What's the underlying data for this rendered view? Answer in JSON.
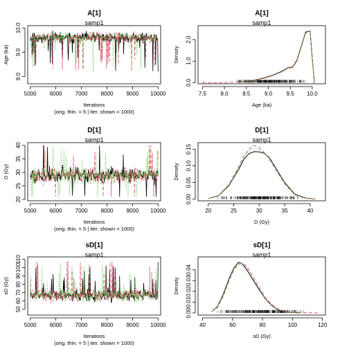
{
  "chart_data": [
    {
      "type": "line",
      "kind": "trace",
      "title": "A[1]",
      "subtitle": "samp1",
      "xlabel": "Iterations",
      "note": "(orig. thin. = 5 | iter. shown = 1000)",
      "ylabel": "Age (ka)",
      "xlim": [
        4900,
        10100
      ],
      "ylim": [
        7.7,
        10.1
      ],
      "xticks": [
        5000,
        6000,
        7000,
        8000,
        9000,
        10000
      ],
      "yticks": [
        8.0,
        9.0,
        10.0
      ],
      "ytick_labels": [
        "8.0",
        "9.0",
        "10.0"
      ],
      "mean": 9.6,
      "spread": 0.2,
      "lo": 8.2,
      "hi": 9.95,
      "skew": "low",
      "series": [
        {
          "color": "#000000",
          "dash": "none",
          "seed": 11
        },
        {
          "color": "#DF536B",
          "dash": "5,3",
          "seed": 23
        },
        {
          "color": "#61D04F",
          "dash": "1.5,2",
          "seed": 37
        }
      ]
    },
    {
      "type": "line",
      "kind": "density",
      "title": "A[1]",
      "subtitle": "samp1",
      "xlabel": "Age (ka)",
      "ylabel": "Density",
      "xlim": [
        7.4,
        10.3
      ],
      "ylim": [
        -0.05,
        2.65
      ],
      "xticks": [
        7.5,
        8.0,
        8.5,
        9.0,
        9.5,
        10.0
      ],
      "xtick_labels": [
        "7.5",
        "8.0",
        "8.5",
        "9.0",
        "9.5",
        "10.0"
      ],
      "yticks": [
        0.0,
        1.0,
        2.0
      ],
      "ytick_labels": [
        "0.0",
        "1.0",
        "2.0"
      ],
      "rug": [
        8.2,
        9.95
      ],
      "series": [
        {
          "color": "#000000",
          "dash": "none",
          "x": [
            8.3,
            8.6,
            8.9,
            9.1,
            9.3,
            9.45,
            9.55,
            9.65,
            9.75,
            9.85,
            9.95,
            10.0,
            10.05
          ],
          "y": [
            0.02,
            0.08,
            0.22,
            0.35,
            0.52,
            0.7,
            0.72,
            1.05,
            1.7,
            2.35,
            2.4,
            1.1,
            0.0
          ]
        },
        {
          "color": "#DF536B",
          "dash": "5,3",
          "x": [
            7.5,
            8.0,
            8.5,
            8.9,
            9.1,
            9.3,
            9.45,
            9.55,
            9.65,
            9.75,
            9.85,
            9.95,
            10.0,
            10.05
          ],
          "y": [
            0.0,
            0.0,
            0.06,
            0.2,
            0.33,
            0.5,
            0.68,
            0.7,
            1.0,
            1.65,
            2.3,
            2.42,
            1.15,
            0.0
          ]
        },
        {
          "color": "#61D04F",
          "dash": "1.5,2",
          "x": [
            8.3,
            8.6,
            8.9,
            9.1,
            9.3,
            9.45,
            9.55,
            9.65,
            9.75,
            9.85,
            9.95,
            10.0,
            10.05
          ],
          "y": [
            0.03,
            0.09,
            0.24,
            0.36,
            0.55,
            0.72,
            0.74,
            1.08,
            1.72,
            2.3,
            2.38,
            1.05,
            0.0
          ]
        }
      ]
    },
    {
      "type": "line",
      "kind": "trace",
      "title": "D[1]",
      "subtitle": "samp1",
      "xlabel": "Iterations",
      "note": "(orig. thin. = 5 | iter. shown = 1000)",
      "ylabel": "D (Gy)",
      "xlim": [
        4900,
        10100
      ],
      "ylim": [
        19.5,
        41
      ],
      "xticks": [
        5000,
        6000,
        7000,
        8000,
        9000,
        10000
      ],
      "yticks": [
        20,
        25,
        30,
        35,
        40
      ],
      "ytick_labels": [
        "20",
        "25",
        "30",
        "35",
        "40"
      ],
      "mean": 29,
      "spread": 2.6,
      "lo": 21,
      "hi": 40,
      "skew": "none",
      "series": [
        {
          "color": "#000000",
          "dash": "none",
          "seed": 5
        },
        {
          "color": "#DF536B",
          "dash": "5,3",
          "seed": 17
        },
        {
          "color": "#61D04F",
          "dash": "1.5,2",
          "seed": 29
        }
      ]
    },
    {
      "type": "line",
      "kind": "density",
      "title": "D[1]",
      "subtitle": "samp1",
      "xlabel": "D (Gy)",
      "ylabel": "Density",
      "xlim": [
        18,
        43
      ],
      "ylim": [
        -0.005,
        0.17
      ],
      "xticks": [
        20,
        25,
        30,
        35,
        40
      ],
      "xtick_labels": [
        "20",
        "25",
        "30",
        "35",
        "40"
      ],
      "yticks": [
        0.0,
        0.05,
        0.1,
        0.15
      ],
      "ytick_labels": [
        "0.00",
        "0.05",
        "0.10",
        "0.15"
      ],
      "rug": [
        21.5,
        39
      ],
      "series": [
        {
          "color": "#000000",
          "dash": "none",
          "x": [
            20,
            22,
            24,
            26,
            27,
            28,
            29,
            30,
            31,
            32,
            33,
            35,
            37,
            39,
            41
          ],
          "y": [
            0.002,
            0.01,
            0.04,
            0.09,
            0.12,
            0.137,
            0.143,
            0.142,
            0.138,
            0.125,
            0.1,
            0.05,
            0.015,
            0.004,
            0.0
          ]
        },
        {
          "color": "#DF536B",
          "dash": "5,3",
          "x": [
            20,
            22,
            24,
            26,
            27,
            28,
            29,
            30,
            31,
            32,
            33,
            35,
            37,
            39,
            41
          ],
          "y": [
            0.002,
            0.011,
            0.042,
            0.1,
            0.13,
            0.15,
            0.162,
            0.155,
            0.14,
            0.12,
            0.095,
            0.045,
            0.013,
            0.003,
            0.0
          ]
        },
        {
          "color": "#61D04F",
          "dash": "1.5,2",
          "x": [
            20,
            22,
            24,
            26,
            27,
            28,
            29,
            30,
            31,
            32,
            33,
            35,
            37,
            39,
            41
          ],
          "y": [
            0.002,
            0.01,
            0.038,
            0.095,
            0.127,
            0.145,
            0.152,
            0.15,
            0.14,
            0.123,
            0.098,
            0.048,
            0.014,
            0.004,
            0.0
          ]
        }
      ]
    },
    {
      "type": "line",
      "kind": "trace",
      "title": "sD[1]",
      "subtitle": "samp1",
      "xlabel": "Iterations",
      "note": "(orig. thin. = 5 | iter. shown = 1000)",
      "ylabel": "sD (Gy)",
      "xlim": [
        4900,
        10100
      ],
      "ylim": [
        43,
        113
      ],
      "xticks": [
        5000,
        6000,
        7000,
        8000,
        9000,
        10000
      ],
      "yticks": [
        50,
        60,
        70,
        80,
        90,
        100,
        110
      ],
      "ytick_labels": [
        "50",
        "60",
        "70",
        "80",
        "90",
        "100",
        "110"
      ],
      "mean": 67,
      "spread": 7,
      "lo": 47,
      "hi": 108,
      "skew": "high",
      "series": [
        {
          "color": "#000000",
          "dash": "none",
          "seed": 7
        },
        {
          "color": "#DF536B",
          "dash": "5,3",
          "seed": 19
        },
        {
          "color": "#61D04F",
          "dash": "1.5,2",
          "seed": 31
        }
      ]
    },
    {
      "type": "line",
      "kind": "density",
      "title": "sD[1]",
      "subtitle": "samp1",
      "xlabel": "sD (Gy)",
      "ylabel": "Density",
      "xlim": [
        37,
        122
      ],
      "ylim": [
        -0.002,
        0.052
      ],
      "xticks": [
        40,
        60,
        80,
        100,
        120
      ],
      "xtick_labels": [
        "40",
        "60",
        "80",
        "100",
        "120"
      ],
      "yticks": [
        0.0,
        0.01,
        0.02,
        0.03,
        0.04
      ],
      "ytick_labels": [
        "0.00",
        "0.01",
        "0.02",
        "0.03",
        "0.04"
      ],
      "rug": [
        48,
        110
      ],
      "series": [
        {
          "color": "#000000",
          "dash": "none",
          "x": [
            46,
            50,
            54,
            58,
            61,
            64,
            66,
            68,
            70,
            74,
            78,
            82,
            86,
            90,
            95,
            100,
            105
          ],
          "y": [
            0.001,
            0.006,
            0.018,
            0.033,
            0.042,
            0.047,
            0.046,
            0.043,
            0.039,
            0.03,
            0.021,
            0.013,
            0.007,
            0.003,
            0.001,
            0.0003,
            0.0
          ]
        },
        {
          "color": "#DF536B",
          "dash": "5,3",
          "x": [
            46,
            50,
            54,
            58,
            61,
            64,
            66,
            68,
            70,
            74,
            78,
            82,
            86,
            90,
            95,
            100,
            110,
            118
          ],
          "y": [
            0.001,
            0.005,
            0.016,
            0.031,
            0.04,
            0.045,
            0.046,
            0.045,
            0.042,
            0.033,
            0.023,
            0.014,
            0.008,
            0.004,
            0.0015,
            0.0005,
            0.0001,
            0.0
          ]
        },
        {
          "color": "#61D04F",
          "dash": "1.5,2",
          "x": [
            46,
            50,
            54,
            58,
            61,
            64,
            66,
            68,
            70,
            74,
            78,
            82,
            86,
            90,
            95,
            100,
            105
          ],
          "y": [
            0.001,
            0.006,
            0.017,
            0.032,
            0.041,
            0.046,
            0.046,
            0.044,
            0.04,
            0.031,
            0.022,
            0.013,
            0.007,
            0.003,
            0.001,
            0.0003,
            0.0
          ]
        }
      ]
    }
  ]
}
